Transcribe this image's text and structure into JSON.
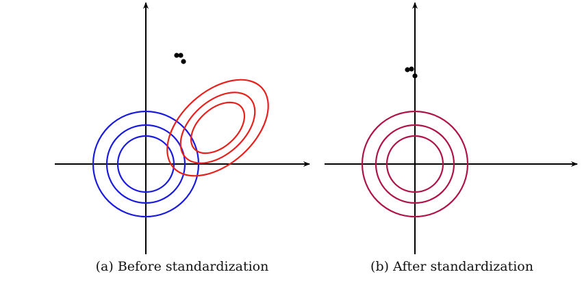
{
  "panels": [
    {
      "id": "before",
      "caption": "(a) Before standardization",
      "reference_color": "#1a1adf",
      "shifted_color": "#e8201c",
      "point_color": "#000000"
    },
    {
      "id": "after",
      "caption": "(b) After standardization",
      "merged_color": "#b01248",
      "point_color": "#000000"
    }
  ]
}
